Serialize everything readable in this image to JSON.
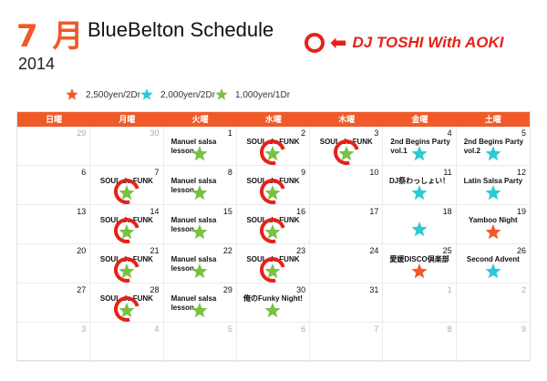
{
  "header": {
    "month": "7 月",
    "title": "BlueBelton Schedule",
    "year": "2014",
    "dj_label": "DJ TOSHI With AOKI",
    "dj_color": "#e5221a"
  },
  "legend": [
    {
      "color": "#f05a28",
      "text": "2,500yen/2Dr"
    },
    {
      "color": "#2ec9d6",
      "text": "2,000yen/2Dr"
    },
    {
      "color": "#7ac143",
      "text": "1,000yen/1Dr"
    }
  ],
  "weekdays": [
    "日曜",
    "月曜",
    "火曜",
    "水曜",
    "木曜",
    "金曜",
    "土曜"
  ],
  "weeks": [
    [
      {
        "day": "29",
        "dim": true
      },
      {
        "day": "30",
        "dim": true
      },
      {
        "day": "1",
        "event": "Manuel salsa lesson",
        "star": "green"
      },
      {
        "day": "2",
        "event": "SOUL de FUNK",
        "star": "green",
        "dj": true
      },
      {
        "day": "3",
        "event": "SOUL de FUNK",
        "star": "green",
        "dj": true
      },
      {
        "day": "4",
        "event": "2nd Begins Party vol.1",
        "star": "cyan"
      },
      {
        "day": "5",
        "event": "2nd Begins Party vol.2",
        "star": "cyan"
      }
    ],
    [
      {
        "day": "6"
      },
      {
        "day": "7",
        "event": "SOUL de FUNK",
        "star": "green",
        "dj": true
      },
      {
        "day": "8",
        "event": "Manuel salsa lesson",
        "star": "green"
      },
      {
        "day": "9",
        "event": "SOUL de FUNK",
        "star": "green",
        "dj": true
      },
      {
        "day": "10"
      },
      {
        "day": "11",
        "event": "DJ祭わっしょい！",
        "star": "cyan"
      },
      {
        "day": "12",
        "event": "Latin Salsa Party",
        "star": "cyan"
      }
    ],
    [
      {
        "day": "13"
      },
      {
        "day": "14",
        "event": "SOUL de FUNK",
        "star": "green",
        "dj": true
      },
      {
        "day": "15",
        "event": "Manuel salsa lesson",
        "star": "green"
      },
      {
        "day": "16",
        "event": "SOUL de FUNK",
        "star": "green",
        "dj": true
      },
      {
        "day": "17"
      },
      {
        "day": "18",
        "star": "cyan"
      },
      {
        "day": "19",
        "event": "Yamboo Night",
        "star": "orange"
      }
    ],
    [
      {
        "day": "20"
      },
      {
        "day": "21",
        "event": "SOUL de FUNK",
        "star": "green",
        "dj": true
      },
      {
        "day": "22",
        "event": "Manuel salsa lesson",
        "star": "green"
      },
      {
        "day": "23",
        "event": "SOUL de FUNK",
        "star": "green",
        "dj": true
      },
      {
        "day": "24"
      },
      {
        "day": "25",
        "event": "愛媛DISCO倶楽部",
        "star": "orange"
      },
      {
        "day": "26",
        "event": "Second Advent",
        "star": "cyan"
      }
    ],
    [
      {
        "day": "27"
      },
      {
        "day": "28",
        "event": "SOUL de FUNK",
        "star": "green",
        "dj": true
      },
      {
        "day": "29",
        "event": "Manuel salsa lesson",
        "star": "green"
      },
      {
        "day": "30",
        "event": "俺のFunky Night!",
        "star": "green"
      },
      {
        "day": "31"
      },
      {
        "day": "1",
        "dim": true
      },
      {
        "day": "2",
        "dim": true
      }
    ],
    [
      {
        "day": "3",
        "dim": true
      },
      {
        "day": "4",
        "dim": true
      },
      {
        "day": "5",
        "dim": true
      },
      {
        "day": "6",
        "dim": true
      },
      {
        "day": "7",
        "dim": true
      },
      {
        "day": "8",
        "dim": true
      },
      {
        "day": "9",
        "dim": true
      }
    ]
  ],
  "star_colors": {
    "orange": "#f05a28",
    "cyan": "#2ec9d6",
    "green": "#7ac143"
  }
}
